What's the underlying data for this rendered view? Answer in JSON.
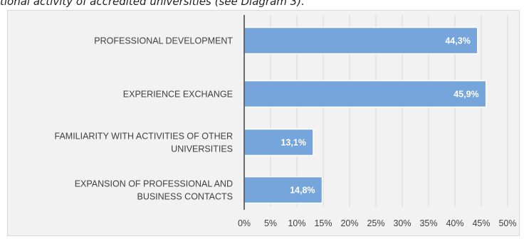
{
  "caption": "tional activity of accredited universities (see Diagram 3).",
  "chart_data": {
    "type": "bar",
    "orientation": "horizontal",
    "categories": [
      [
        "PROFESSIONAL DEVELOPMENT"
      ],
      [
        "EXPERIENCE EXCHANGE"
      ],
      [
        "FAMILIARITY WITH ACTIVITIES OF OTHER",
        "UNIVERSITIES"
      ],
      [
        "EXPANSION OF PROFESSIONAL AND",
        "BUSINESS CONTACTS"
      ]
    ],
    "values": [
      44.3,
      45.9,
      13.1,
      14.8
    ],
    "data_labels": [
      "44,3%",
      "45,9%",
      "13,1%",
      "14,8%"
    ],
    "xlim": [
      0,
      50
    ],
    "x_ticks": [
      "0%",
      "5%",
      "10%",
      "15%",
      "20%",
      "25%",
      "30%",
      "35%",
      "40%",
      "45%",
      "50%"
    ],
    "grid": "vertical",
    "colors": {
      "bar": "#75a5db",
      "bar_edge": "#ffffff",
      "grid": "#d9d9d9",
      "axis": "#404040"
    }
  }
}
